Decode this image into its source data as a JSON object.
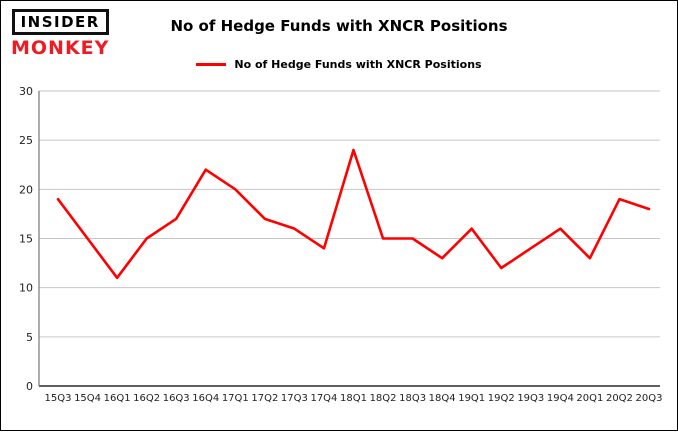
{
  "logo": {
    "line1": "INSIDER",
    "line2": "MONKEY"
  },
  "header": {
    "title": "No of Hedge Funds with XNCR Positions"
  },
  "legend": {
    "label": "No of Hedge Funds with XNCR Positions",
    "color": "#ff0000"
  },
  "chart_data": {
    "type": "line",
    "title": "No of Hedge Funds with XNCR Positions",
    "categories": [
      "15Q3",
      "15Q4",
      "16Q1",
      "16Q2",
      "16Q3",
      "16Q4",
      "17Q1",
      "17Q2",
      "17Q3",
      "17Q4",
      "18Q1",
      "18Q2",
      "18Q3",
      "18Q4",
      "19Q1",
      "19Q2",
      "19Q3",
      "19Q4",
      "20Q1",
      "20Q2",
      "20Q3"
    ],
    "values": [
      19,
      15,
      11,
      15,
      17,
      22,
      20,
      17,
      16,
      14,
      24,
      15,
      15,
      13,
      16,
      12,
      14,
      16,
      13,
      19,
      18
    ],
    "xlabel": "",
    "ylabel": "",
    "ylim": [
      0,
      30
    ],
    "yticks": [
      0,
      5,
      10,
      15,
      20,
      25,
      30
    ],
    "grid": true,
    "legend_position": "top",
    "line_color": "#ff0000"
  }
}
